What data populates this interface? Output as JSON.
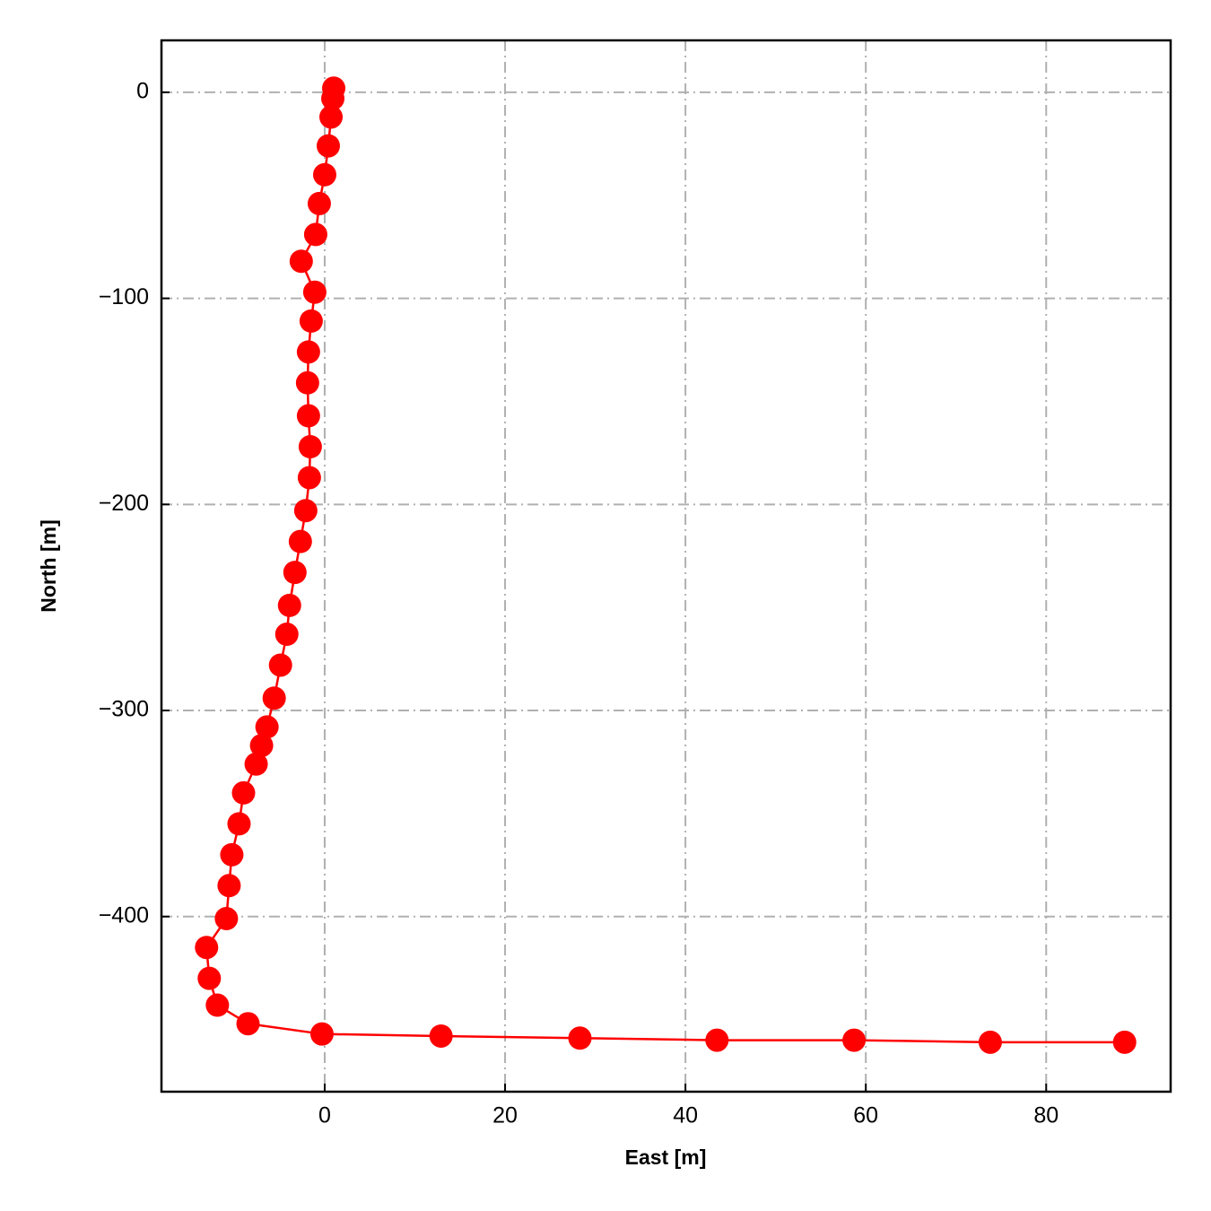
{
  "chart_data": {
    "type": "line",
    "x_label": "East [m]",
    "y_label": "North [m]",
    "x": [
      1.0,
      0.9,
      0.7,
      0.4,
      0.0,
      -0.6,
      -1.0,
      -2.6,
      -1.1,
      -1.5,
      -1.8,
      -1.9,
      -1.8,
      -1.6,
      -1.7,
      -2.1,
      -2.7,
      -3.3,
      -3.9,
      -4.2,
      -4.9,
      -5.6,
      -6.4,
      -7.0,
      -7.6,
      -9.0,
      -9.5,
      -10.3,
      -10.6,
      -10.9,
      -13.1,
      -12.8,
      -11.9,
      -8.5,
      -0.3,
      12.9,
      28.3,
      43.5,
      58.7,
      73.8,
      88.7
    ],
    "values": [
      2,
      -3,
      -12,
      -26,
      -40,
      -54,
      -69,
      -82,
      -97,
      -111,
      -126,
      -141,
      -157,
      -172,
      -187,
      -203,
      -218,
      -233,
      -249,
      -263,
      -278,
      -294,
      -308,
      -317,
      -326,
      -340,
      -355,
      -370,
      -385,
      -401,
      -415,
      -430,
      -443,
      -452,
      -457,
      -458,
      -459,
      -460,
      -460,
      -461,
      -461
    ],
    "color": "#ff0000",
    "xlim": [
      -18.1,
      93.8
    ],
    "ylim": [
      -485,
      25.2
    ],
    "xticks": [
      0,
      20,
      40,
      60,
      80
    ],
    "yticks": [
      0,
      {
        "value": -100,
        "label": "−100"
      },
      {
        "value": -200,
        "label": "−200"
      },
      {
        "value": -300,
        "label": "−300"
      },
      {
        "value": -400,
        "label": "−400"
      }
    ],
    "grid": true,
    "markers": true
  }
}
